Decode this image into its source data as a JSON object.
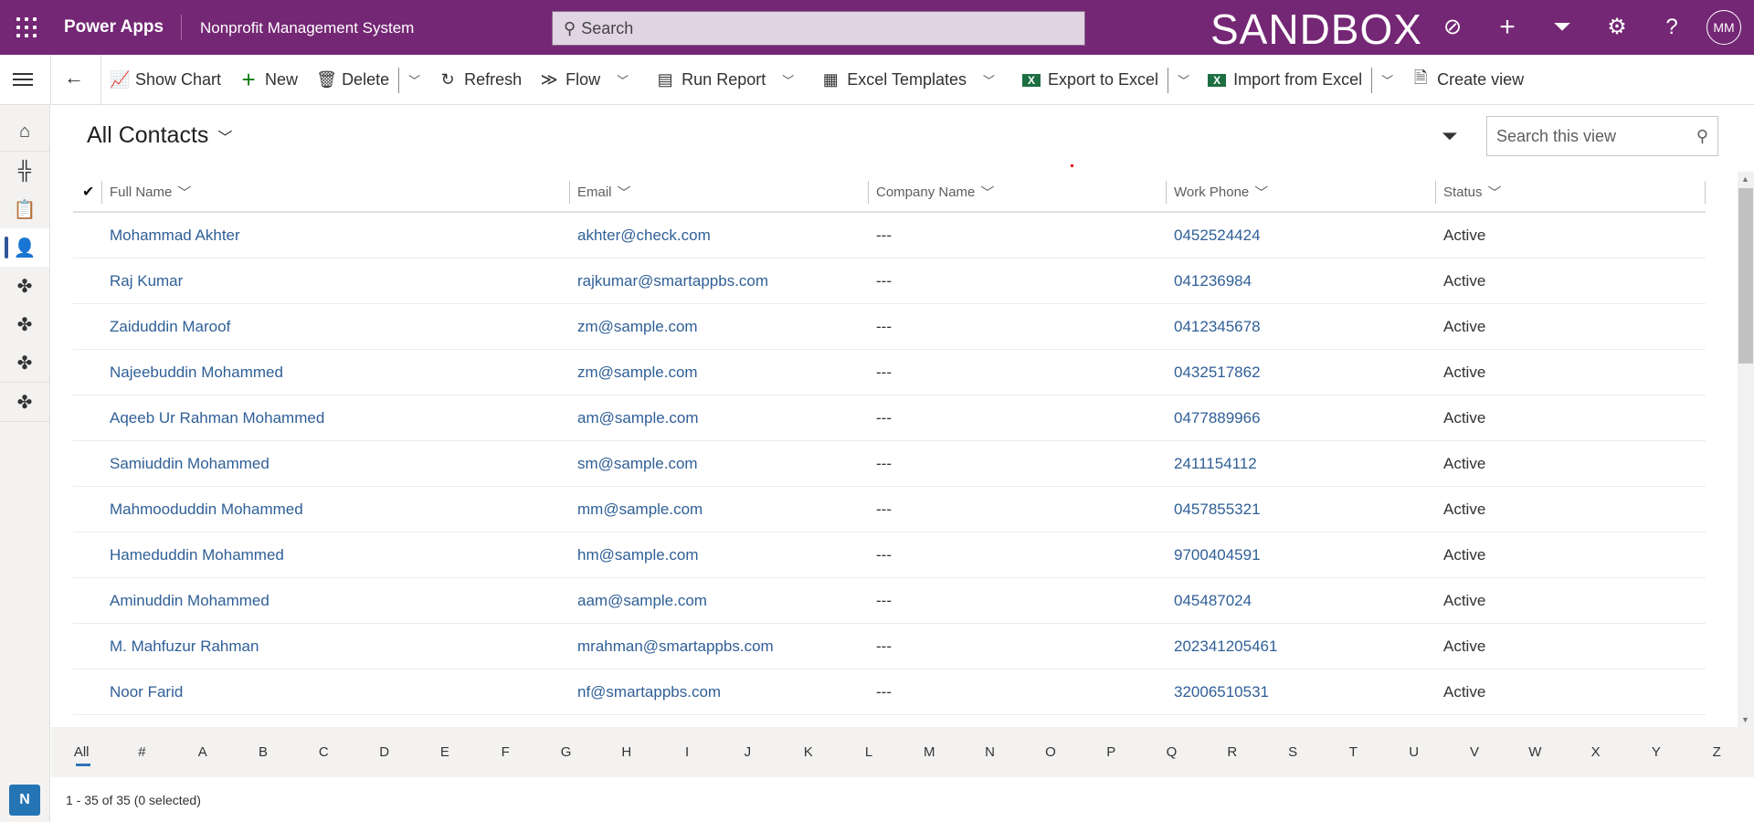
{
  "header": {
    "app_name": "Power Apps",
    "system_name": "Nonprofit Management System",
    "search_placeholder": "Search",
    "environment": "SANDBOX",
    "avatar_initials": "MM",
    "accent": "#742774"
  },
  "toolbar": {
    "items": [
      {
        "label": "Show Chart",
        "icon": "chart-icon"
      },
      {
        "label": "New",
        "icon": "plus-icon"
      },
      {
        "label": "Delete",
        "icon": "trash-icon"
      },
      {
        "label": "Refresh",
        "icon": "refresh-icon"
      },
      {
        "label": "Flow",
        "icon": "flow-icon"
      },
      {
        "label": "Run Report",
        "icon": "report-icon"
      },
      {
        "label": "Excel Templates",
        "icon": "excel-template-icon"
      },
      {
        "label": "Export to Excel",
        "icon": "excel-icon"
      },
      {
        "label": "Import from Excel",
        "icon": "excel-icon"
      },
      {
        "label": "Create view",
        "icon": "create-view-icon"
      }
    ]
  },
  "view": {
    "title": "All Contacts",
    "search_placeholder": "Search this view"
  },
  "columns": [
    "Full Name",
    "Email",
    "Company Name",
    "Work Phone",
    "Status"
  ],
  "rows": [
    [
      "Mohammad Akhter",
      "akhter@check.com",
      "---",
      "0452524424",
      "Active"
    ],
    [
      "Raj Kumar",
      "rajkumar@smartappbs.com",
      "---",
      "041236984",
      "Active"
    ],
    [
      "Zaiduddin Maroof",
      "zm@sample.com",
      "---",
      "0412345678",
      "Active"
    ],
    [
      "Najeebuddin Mohammed",
      "zm@sample.com",
      "---",
      "0432517862",
      "Active"
    ],
    [
      "Aqeeb Ur Rahman Mohammed",
      "am@sample.com",
      "---",
      "0477889966",
      "Active"
    ],
    [
      "Samiuddin Mohammed",
      "sm@sample.com",
      "---",
      "2411154112",
      "Active"
    ],
    [
      "Mahmooduddin Mohammed",
      "mm@sample.com",
      "---",
      "0457855321",
      "Active"
    ],
    [
      "Hameduddin Mohammed",
      "hm@sample.com",
      "---",
      "9700404591",
      "Active"
    ],
    [
      "Aminuddin Mohammed",
      "aam@sample.com",
      "---",
      "045487024",
      "Active"
    ],
    [
      "M. Mahfuzur Rahman",
      "mrahman@smartappbs.com",
      "---",
      "202341205461",
      "Active"
    ],
    [
      "Noor Farid",
      "nf@smartappbs.com",
      "---",
      "32006510531",
      "Active"
    ]
  ],
  "alphabet": [
    "All",
    "#",
    "A",
    "B",
    "C",
    "D",
    "E",
    "F",
    "G",
    "H",
    "I",
    "J",
    "K",
    "L",
    "M",
    "N",
    "O",
    "P",
    "Q",
    "R",
    "S",
    "T",
    "U",
    "V",
    "W",
    "X",
    "Y",
    "Z"
  ],
  "footer": {
    "count": "1 - 35 of 35 (0 selected)",
    "area_badge": "N"
  }
}
